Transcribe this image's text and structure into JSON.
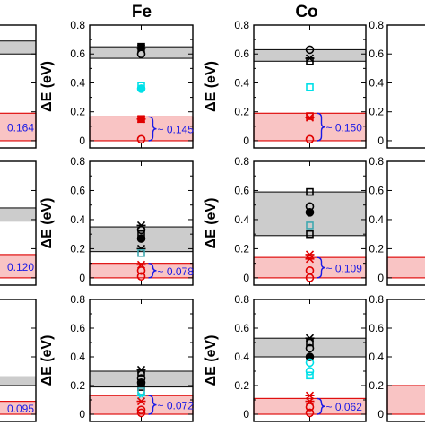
{
  "colors": {
    "gray_band": "#cccccc",
    "red_band": "#f9c4c4",
    "red_line": "#e01010",
    "annotation": "#1a1ae6",
    "cyan": "#00e0e8",
    "teal": "#40a8b0",
    "black": "#000000",
    "red": "#e00000"
  },
  "chart_data": {
    "type": "scatter",
    "columns": [
      "",
      "Fe",
      "Co",
      ""
    ],
    "ylabel": "ΔE (eV)",
    "yticks": [
      "0",
      "0.2",
      "0.4",
      "0.6",
      "0.8"
    ],
    "ylim": [
      -0.05,
      0.8
    ],
    "panels": [
      {
        "id": "r1-left-partial",
        "partial": "left",
        "gray_band": [
          0.6,
          0.69
        ],
        "red_band": [
          0,
          0.19
        ],
        "annotation": "0.164",
        "points": []
      },
      {
        "id": "r1-fe",
        "column": "Fe",
        "gray_band": [
          0.57,
          0.65
        ],
        "red_band": [
          0,
          0.165
        ],
        "annotation": "~ 0.145",
        "points": [
          {
            "y": 0.65,
            "marker": "square-filled",
            "color": "black"
          },
          {
            "y": 0.64,
            "marker": "cross",
            "color": "black"
          },
          {
            "y": 0.6,
            "marker": "circle",
            "color": "black"
          },
          {
            "y": 0.38,
            "marker": "square",
            "color": "cyan"
          },
          {
            "y": 0.36,
            "marker": "circle-filled",
            "color": "cyan"
          },
          {
            "y": 0.15,
            "marker": "square-filled",
            "color": "red"
          },
          {
            "y": 0.15,
            "marker": "cross",
            "color": "red"
          },
          {
            "y": 0.01,
            "marker": "circle",
            "color": "red"
          }
        ]
      },
      {
        "id": "r1-co",
        "column": "Co",
        "gray_band": [
          0.55,
          0.63
        ],
        "red_band": [
          0,
          0.19
        ],
        "annotation": "~ 0.150",
        "points": [
          {
            "y": 0.63,
            "marker": "circle",
            "color": "black"
          },
          {
            "y": 0.57,
            "marker": "cross",
            "color": "black"
          },
          {
            "y": 0.55,
            "marker": "square",
            "color": "black"
          },
          {
            "y": 0.37,
            "marker": "square",
            "color": "cyan"
          },
          {
            "y": 0.17,
            "marker": "square",
            "color": "red"
          },
          {
            "y": 0.16,
            "marker": "cross",
            "color": "red"
          },
          {
            "y": 0.01,
            "marker": "circle",
            "color": "red"
          }
        ]
      },
      {
        "id": "r1-right-partial",
        "partial": "right",
        "gray_band": [],
        "red_band": [],
        "annotation": "",
        "points": []
      },
      {
        "id": "r2-left-partial",
        "partial": "left",
        "gray_band": [
          0.39,
          0.48
        ],
        "red_band": [
          0,
          0.16
        ],
        "annotation": "0.120",
        "points": []
      },
      {
        "id": "r2-fe",
        "column": "Fe",
        "gray_band": [
          0.18,
          0.35
        ],
        "red_band": [
          0,
          0.1
        ],
        "annotation": "~ 0.078",
        "points": [
          {
            "y": 0.36,
            "marker": "cross",
            "color": "black"
          },
          {
            "y": 0.33,
            "marker": "circle",
            "color": "black"
          },
          {
            "y": 0.3,
            "marker": "square",
            "color": "black"
          },
          {
            "y": 0.27,
            "marker": "circle-filled",
            "color": "black"
          },
          {
            "y": 0.2,
            "marker": "cross",
            "color": "black"
          },
          {
            "y": 0.17,
            "marker": "square",
            "color": "teal"
          },
          {
            "y": 0.09,
            "marker": "cross",
            "color": "red"
          },
          {
            "y": 0.05,
            "marker": "circle",
            "color": "red"
          },
          {
            "y": 0.01,
            "marker": "circle",
            "color": "red"
          }
        ]
      },
      {
        "id": "r2-co",
        "column": "Co",
        "gray_band": [
          0.29,
          0.59
        ],
        "red_band": [
          0,
          0.14
        ],
        "annotation": "~ 0.109",
        "points": [
          {
            "y": 0.59,
            "marker": "square",
            "color": "black"
          },
          {
            "y": 0.49,
            "marker": "circle",
            "color": "black"
          },
          {
            "y": 0.45,
            "marker": "circle-filled",
            "color": "black"
          },
          {
            "y": 0.36,
            "marker": "square",
            "color": "teal"
          },
          {
            "y": 0.3,
            "marker": "square",
            "color": "black"
          },
          {
            "y": 0.16,
            "marker": "cross",
            "color": "red"
          },
          {
            "y": 0.13,
            "marker": "cross",
            "color": "red"
          },
          {
            "y": 0.05,
            "marker": "circle",
            "color": "red"
          },
          {
            "y": 0.0,
            "marker": "circle",
            "color": "red"
          }
        ]
      },
      {
        "id": "r2-right-partial",
        "partial": "right",
        "gray_band": [],
        "red_band": [
          0,
          0.14
        ],
        "annotation": "",
        "points": []
      },
      {
        "id": "r3-left-partial",
        "partial": "left",
        "gray_band": [
          0.2,
          0.26
        ],
        "red_band": [
          0,
          0.09
        ],
        "annotation": "0.095",
        "points": []
      },
      {
        "id": "r3-fe",
        "column": "Fe",
        "gray_band": [
          0.19,
          0.3
        ],
        "red_band": [
          0,
          0.13
        ],
        "annotation": "~ 0.072",
        "points": [
          {
            "y": 0.31,
            "marker": "cross",
            "color": "black"
          },
          {
            "y": 0.29,
            "marker": "square",
            "color": "black"
          },
          {
            "y": 0.25,
            "marker": "circle",
            "color": "black"
          },
          {
            "y": 0.22,
            "marker": "circle-filled",
            "color": "black"
          },
          {
            "y": 0.19,
            "marker": "square",
            "color": "black"
          },
          {
            "y": 0.16,
            "marker": "square",
            "color": "teal"
          },
          {
            "y": 0.13,
            "marker": "cross",
            "color": "cyan"
          },
          {
            "y": 0.09,
            "marker": "cross",
            "color": "red"
          },
          {
            "y": 0.03,
            "marker": "circle",
            "color": "red"
          },
          {
            "y": 0.01,
            "marker": "circle",
            "color": "red"
          }
        ]
      },
      {
        "id": "r3-co",
        "column": "Co",
        "gray_band": [
          0.4,
          0.53
        ],
        "red_band": [
          0,
          0.11
        ],
        "annotation": "~ 0.062",
        "points": [
          {
            "y": 0.53,
            "marker": "cross",
            "color": "black"
          },
          {
            "y": 0.5,
            "marker": "square",
            "color": "black"
          },
          {
            "y": 0.46,
            "marker": "circle",
            "color": "black"
          },
          {
            "y": 0.4,
            "marker": "circle-filled",
            "color": "black"
          },
          {
            "y": 0.36,
            "marker": "circle",
            "color": "cyan"
          },
          {
            "y": 0.3,
            "marker": "circle",
            "color": "cyan"
          },
          {
            "y": 0.27,
            "marker": "square",
            "color": "cyan"
          },
          {
            "y": 0.13,
            "marker": "cross",
            "color": "red"
          },
          {
            "y": 0.09,
            "marker": "cross",
            "color": "red"
          },
          {
            "y": 0.05,
            "marker": "circle",
            "color": "red"
          },
          {
            "y": 0.01,
            "marker": "circle",
            "color": "red"
          }
        ]
      },
      {
        "id": "r3-right-partial",
        "partial": "right",
        "gray_band": [],
        "red_band": [
          0,
          0.2
        ],
        "annotation": "",
        "points": []
      }
    ]
  }
}
